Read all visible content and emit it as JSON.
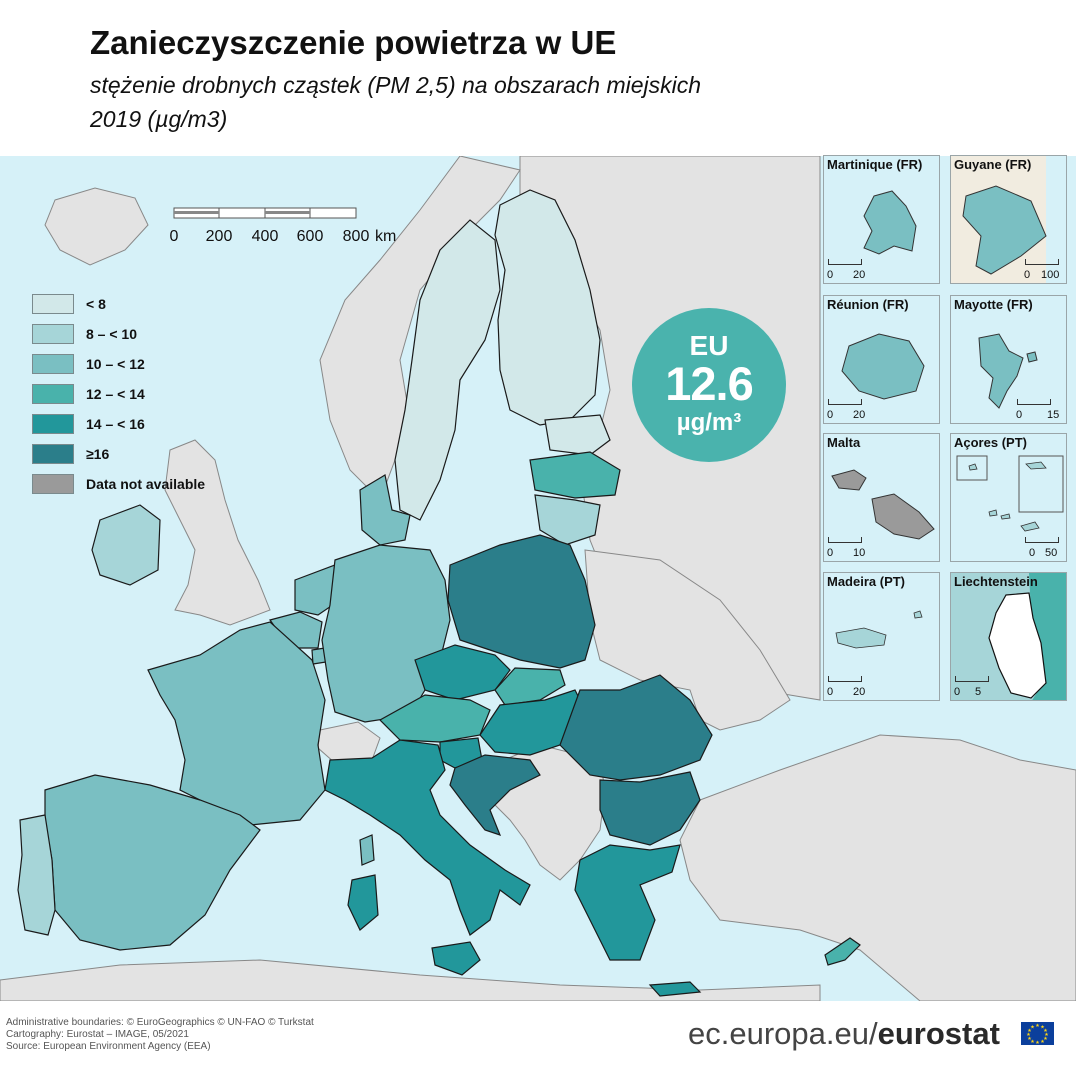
{
  "header": {
    "title": "Zanieczyszczenie powietrza w UE",
    "subtitle": "stężenie drobnych cząstek (PM 2,5) na obszarach miejskich",
    "year_unit": "2019 (µg/m3)"
  },
  "colors": {
    "sea": "#d6f1f8",
    "non_eu_land": "#e3e3e3",
    "border": "#1a1a1a"
  },
  "legend": {
    "items": [
      {
        "label": "< 8",
        "color": "#d2e8e9"
      },
      {
        "label": "8 – < 10",
        "color": "#a6d5d8"
      },
      {
        "label": "10 – < 12",
        "color": "#7abfc2"
      },
      {
        "label": "12 – < 14",
        "color": "#49b2ab"
      },
      {
        "label": "14 – < 16",
        "color": "#22979b"
      },
      {
        "label": "≥16",
        "color": "#2b7e8a"
      },
      {
        "label": "Data not available",
        "color": "#9a9a9a"
      }
    ]
  },
  "scale_bar": {
    "ticks": [
      "0",
      "200",
      "400",
      "600",
      "800"
    ],
    "unit": "km"
  },
  "eu_average": {
    "label": "EU",
    "value": "12.6",
    "unit": "µg/m³",
    "color": "#4ab3ad"
  },
  "countries": [
    {
      "name": "Finland",
      "class": "< 8"
    },
    {
      "name": "Sweden",
      "class": "< 8"
    },
    {
      "name": "Estonia",
      "class": "< 8"
    },
    {
      "name": "Latvia",
      "class": "12 – < 14"
    },
    {
      "name": "Lithuania",
      "class": "8 – < 10"
    },
    {
      "name": "Denmark",
      "class": "10 – < 12"
    },
    {
      "name": "Ireland",
      "class": "8 – < 10"
    },
    {
      "name": "Netherlands",
      "class": "10 – < 12"
    },
    {
      "name": "Belgium",
      "class": "10 – < 12"
    },
    {
      "name": "Luxembourg",
      "class": "10 – < 12"
    },
    {
      "name": "Germany",
      "class": "10 – < 12"
    },
    {
      "name": "France",
      "class": "10 – < 12"
    },
    {
      "name": "Spain",
      "class": "10 – < 12"
    },
    {
      "name": "Portugal",
      "class": "8 – < 10"
    },
    {
      "name": "Poland",
      "class": "≥16"
    },
    {
      "name": "Czechia",
      "class": "14 – < 16"
    },
    {
      "name": "Slovakia",
      "class": "12 – < 14"
    },
    {
      "name": "Austria",
      "class": "12 – < 14"
    },
    {
      "name": "Hungary",
      "class": "14 – < 16"
    },
    {
      "name": "Slovenia",
      "class": "14 – < 16"
    },
    {
      "name": "Croatia",
      "class": "≥16"
    },
    {
      "name": "Italy",
      "class": "14 – < 16"
    },
    {
      "name": "Romania",
      "class": "≥16"
    },
    {
      "name": "Bulgaria",
      "class": "≥16"
    },
    {
      "name": "Greece",
      "class": "14 – < 16"
    },
    {
      "name": "Cyprus",
      "class": "12 – < 14"
    },
    {
      "name": "Malta",
      "class": "Data not available"
    }
  ],
  "insets": [
    {
      "name": "Martinique (FR)",
      "scale_a": "0",
      "scale_b": "20",
      "fill": "#7abfc2"
    },
    {
      "name": "Guyane (FR)",
      "scale_a": "0",
      "scale_b": "100",
      "fill": "#7abfc2"
    },
    {
      "name": "Réunion (FR)",
      "scale_a": "0",
      "scale_b": "20",
      "fill": "#7abfc2"
    },
    {
      "name": "Mayotte (FR)",
      "scale_a": "0",
      "scale_b": "15",
      "fill": "#7abfc2"
    },
    {
      "name": "Malta",
      "scale_a": "0",
      "scale_b": "10",
      "fill": "#9a9a9a"
    },
    {
      "name": "Açores (PT)",
      "scale_a": "0",
      "scale_b": "50",
      "fill": "#a6d5d8"
    },
    {
      "name": "Madeira (PT)",
      "scale_a": "0",
      "scale_b": "20",
      "fill": "#a6d5d8"
    },
    {
      "name": "Liechtenstein",
      "scale_a": "0",
      "scale_b": "5",
      "fill": "#ffffff"
    }
  ],
  "footer": {
    "credits": [
      "Administrative boundaries: © EuroGeographics © UN-FAO © Turkstat",
      "Cartography: Eurostat – IMAGE, 05/2021",
      "Source: European Environment Agency (EEA)"
    ],
    "site": "ec.europa.eu/",
    "brand": "eurostat"
  }
}
